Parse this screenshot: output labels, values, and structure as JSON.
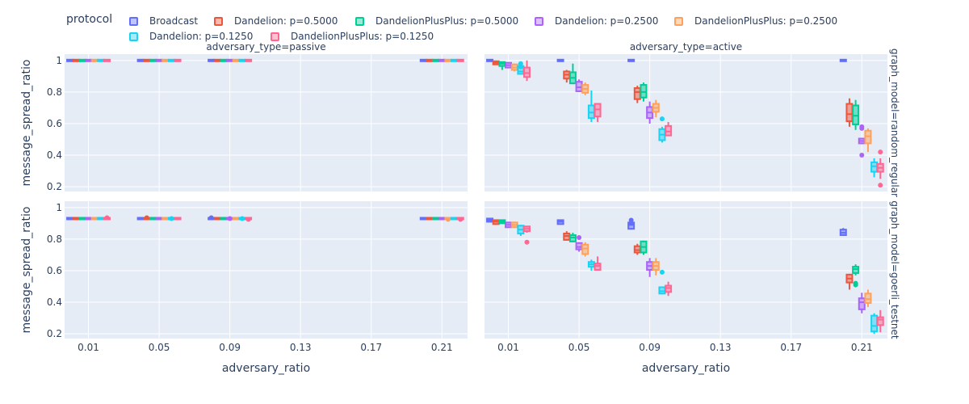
{
  "legend": {
    "title": "protocol",
    "items": [
      {
        "name": "Broadcast",
        "color": "#636efa"
      },
      {
        "name": "Dandelion: p=0.5000",
        "color": "#EF553B"
      },
      {
        "name": "DandelionPlusPlus: p=0.5000",
        "color": "#00cc96"
      },
      {
        "name": "Dandelion: p=0.2500",
        "color": "#ab63fa"
      },
      {
        "name": "DandelionPlusPlus: p=0.2500",
        "color": "#FFA15A"
      },
      {
        "name": "Dandelion: p=0.1250",
        "color": "#19d3f3"
      },
      {
        "name": "DandelionPlusPlus: p=0.1250",
        "color": "#FF6692"
      }
    ]
  },
  "chart_data": {
    "type": "box",
    "xlabel": "adversary_ratio",
    "ylabel": "message_spread_ratio",
    "x_categories": [
      0.01,
      0.05,
      0.09,
      0.21
    ],
    "x_ticks": [
      "0.01",
      "0.05",
      "0.09",
      "0.13",
      "0.17",
      "0.21"
    ],
    "ylim": [
      0.17,
      1.04
    ],
    "y_ticks": [
      "0.2",
      "0.4",
      "0.6",
      "0.8",
      "1"
    ],
    "column_titles": [
      "adversary_type=passive",
      "adversary_type=active"
    ],
    "row_titles": [
      "graph_model=random_regular",
      "graph_model=goerli_testnet"
    ],
    "panels": [
      {
        "row": 0,
        "col": 0,
        "boxes": {
          "0.01": [
            [
              1,
              1,
              1,
              1,
              1
            ],
            [
              1,
              1,
              1,
              1,
              1
            ],
            [
              1,
              1,
              1,
              1,
              1
            ],
            [
              1,
              1,
              1,
              1,
              1
            ],
            [
              1,
              1,
              1,
              1,
              1
            ],
            [
              1,
              1,
              1,
              1,
              1
            ],
            [
              1,
              1,
              1,
              1,
              1
            ]
          ],
          "0.05": [
            [
              1,
              1,
              1,
              1,
              1
            ],
            [
              1,
              1,
              1,
              1,
              1
            ],
            [
              1,
              1,
              1,
              1,
              1
            ],
            [
              1,
              1,
              1,
              1,
              1
            ],
            [
              1,
              1,
              1,
              1,
              1
            ],
            [
              1,
              1,
              1,
              1,
              1
            ],
            [
              1,
              1,
              1,
              1,
              1
            ]
          ],
          "0.09": [
            [
              1,
              1,
              1,
              1,
              1
            ],
            [
              1,
              1,
              1,
              1,
              1
            ],
            [
              1,
              1,
              1,
              1,
              1
            ],
            [
              1,
              1,
              1,
              1,
              1
            ],
            [
              1,
              1,
              1,
              1,
              1
            ],
            [
              1,
              1,
              1,
              1,
              1
            ],
            [
              1,
              1,
              1,
              1,
              1
            ]
          ],
          "0.21": [
            [
              1,
              1,
              1,
              1,
              1
            ],
            [
              1,
              1,
              1,
              1,
              1
            ],
            [
              1,
              1,
              1,
              1,
              1
            ],
            [
              1,
              1,
              1,
              1,
              1
            ],
            [
              1,
              1,
              1,
              1,
              1
            ],
            [
              1,
              1,
              1,
              1,
              1
            ],
            [
              1,
              1,
              1,
              1,
              1
            ]
          ]
        }
      },
      {
        "row": 0,
        "col": 1,
        "boxes": {
          "0.01": [
            [
              1,
              1,
              1,
              1,
              1
            ],
            [
              0.98,
              0.98,
              0.985,
              0.99,
              0.995
            ],
            [
              0.94,
              0.97,
              0.98,
              0.985,
              0.99
            ],
            [
              0.95,
              0.96,
              0.97,
              0.98,
              0.99
            ],
            [
              0.93,
              0.945,
              0.955,
              0.97,
              0.98
            ],
            [
              0.91,
              0.92,
              0.93,
              0.96,
              0.99
            ],
            [
              0.87,
              0.9,
              0.92,
              0.95,
              1
            ]
          ],
          "0.05": [
            [
              1,
              1,
              1,
              1,
              1
            ],
            [
              0.86,
              0.89,
              0.91,
              0.925,
              0.94
            ],
            [
              0.85,
              0.86,
              0.89,
              0.92,
              0.98
            ],
            [
              0.8,
              0.81,
              0.83,
              0.86,
              0.88
            ],
            [
              0.78,
              0.8,
              0.82,
              0.84,
              0.86
            ],
            [
              0.61,
              0.64,
              0.67,
              0.71,
              0.81
            ],
            [
              0.61,
              0.65,
              0.69,
              0.72,
              0.73
            ]
          ],
          "0.09": [
            [
              1,
              1,
              1,
              1,
              1
            ],
            [
              0.73,
              0.76,
              0.8,
              0.82,
              0.84
            ],
            [
              0.74,
              0.77,
              0.8,
              0.84,
              0.86
            ],
            [
              0.6,
              0.64,
              0.67,
              0.7,
              0.74
            ],
            [
              0.64,
              0.68,
              0.7,
              0.72,
              0.75
            ],
            [
              0.48,
              0.5,
              0.53,
              0.56,
              0.58
            ],
            [
              0.53,
              0.53,
              0.55,
              0.58,
              0.61
            ]
          ],
          "0.21": [
            [
              1,
              1,
              1,
              1,
              1
            ],
            [
              0.58,
              0.62,
              0.66,
              0.72,
              0.76
            ],
            [
              0.56,
              0.6,
              0.65,
              0.71,
              0.75
            ],
            [
              0.47,
              0.48,
              0.49,
              0.5,
              0.51
            ],
            [
              0.42,
              0.48,
              0.52,
              0.55,
              0.57
            ],
            [
              0.26,
              0.3,
              0.33,
              0.35,
              0.38
            ],
            [
              0.25,
              0.3,
              0.32,
              0.34,
              0.38
            ]
          ]
        },
        "outliers": [
          [
            0.09,
            5,
            0.63
          ],
          [
            0.21,
            3,
            0.57
          ],
          [
            0.21,
            3,
            0.58
          ],
          [
            0.21,
            3,
            0.4
          ],
          [
            0.21,
            6,
            0.42
          ],
          [
            0.21,
            6,
            0.21
          ],
          [
            0.01,
            5,
            0.98
          ],
          [
            0.01,
            5,
            0.96
          ]
        ]
      },
      {
        "row": 1,
        "col": 0,
        "boxes": {
          "0.01": [
            [
              0.93,
              0.93,
              0.93,
              0.93,
              0.93
            ],
            [
              0.93,
              0.93,
              0.93,
              0.93,
              0.93
            ],
            [
              0.93,
              0.93,
              0.93,
              0.93,
              0.93
            ],
            [
              0.93,
              0.93,
              0.93,
              0.93,
              0.93
            ],
            [
              0.93,
              0.93,
              0.93,
              0.93,
              0.93
            ],
            [
              0.93,
              0.93,
              0.93,
              0.93,
              0.93
            ],
            [
              0.93,
              0.93,
              0.93,
              0.93,
              0.93
            ]
          ],
          "0.05": [
            [
              0.93,
              0.93,
              0.93,
              0.93,
              0.93
            ],
            [
              0.93,
              0.93,
              0.93,
              0.93,
              0.93
            ],
            [
              0.93,
              0.93,
              0.93,
              0.93,
              0.93
            ],
            [
              0.93,
              0.93,
              0.93,
              0.93,
              0.93
            ],
            [
              0.93,
              0.93,
              0.93,
              0.93,
              0.93
            ],
            [
              0.93,
              0.93,
              0.93,
              0.93,
              0.93
            ],
            [
              0.93,
              0.93,
              0.93,
              0.93,
              0.93
            ]
          ],
          "0.09": [
            [
              0.93,
              0.93,
              0.93,
              0.93,
              0.93
            ],
            [
              0.93,
              0.93,
              0.93,
              0.93,
              0.93
            ],
            [
              0.93,
              0.93,
              0.93,
              0.93,
              0.93
            ],
            [
              0.93,
              0.93,
              0.93,
              0.93,
              0.93
            ],
            [
              0.93,
              0.93,
              0.93,
              0.93,
              0.93
            ],
            [
              0.93,
              0.93,
              0.93,
              0.93,
              0.93
            ],
            [
              0.93,
              0.93,
              0.93,
              0.93,
              0.93
            ]
          ],
          "0.21": [
            [
              0.93,
              0.93,
              0.93,
              0.93,
              0.93
            ],
            [
              0.93,
              0.93,
              0.93,
              0.93,
              0.93
            ],
            [
              0.93,
              0.93,
              0.93,
              0.93,
              0.93
            ],
            [
              0.93,
              0.93,
              0.93,
              0.93,
              0.93
            ],
            [
              0.93,
              0.93,
              0.93,
              0.93,
              0.93
            ],
            [
              0.93,
              0.93,
              0.93,
              0.93,
              0.93
            ],
            [
              0.93,
              0.93,
              0.93,
              0.93,
              0.93
            ]
          ]
        },
        "outliers": [
          [
            0.01,
            6,
            0.935
          ],
          [
            0.05,
            1,
            0.935
          ],
          [
            0.05,
            5,
            0.93
          ],
          [
            0.09,
            0,
            0.935
          ],
          [
            0.09,
            3,
            0.93
          ],
          [
            0.09,
            5,
            0.93
          ],
          [
            0.09,
            6,
            0.925
          ],
          [
            0.21,
            4,
            0.925
          ],
          [
            0.21,
            6,
            0.925
          ]
        ]
      },
      {
        "row": 1,
        "col": 1,
        "boxes": {
          "0.01": [
            [
              0.91,
              0.915,
              0.92,
              0.925,
              0.93
            ],
            [
              0.89,
              0.9,
              0.91,
              0.915,
              0.92
            ],
            [
              0.9,
              0.905,
              0.91,
              0.915,
              0.92
            ],
            [
              0.87,
              0.88,
              0.89,
              0.9,
              0.91
            ],
            [
              0.87,
              0.88,
              0.89,
              0.9,
              0.91
            ],
            [
              0.82,
              0.84,
              0.86,
              0.88,
              0.89
            ],
            [
              0.84,
              0.855,
              0.865,
              0.875,
              0.88
            ]
          ],
          "0.05": [
            [
              0.9,
              0.9,
              0.91,
              0.915,
              0.92
            ],
            [
              0.79,
              0.8,
              0.82,
              0.83,
              0.85
            ],
            [
              0.78,
              0.79,
              0.81,
              0.82,
              0.84
            ],
            [
              0.72,
              0.74,
              0.75,
              0.77,
              0.78
            ],
            [
              0.69,
              0.71,
              0.74,
              0.76,
              0.78
            ],
            [
              0.6,
              0.63,
              0.64,
              0.65,
              0.67
            ],
            [
              0.6,
              0.61,
              0.63,
              0.64,
              0.69
            ]
          ],
          "0.09": [
            [
              0.86,
              0.87,
              0.89,
              0.9,
              0.92
            ],
            [
              0.7,
              0.72,
              0.73,
              0.75,
              0.77
            ],
            [
              0.7,
              0.72,
              0.75,
              0.78,
              0.79
            ],
            [
              0.56,
              0.61,
              0.63,
              0.65,
              0.68
            ],
            [
              0.57,
              0.61,
              0.63,
              0.65,
              0.68
            ],
            [
              0.45,
              0.46,
              0.47,
              0.49,
              0.5
            ],
            [
              0.44,
              0.47,
              0.49,
              0.5,
              0.53
            ]
          ],
          "0.21": [
            [
              0.82,
              0.83,
              0.84,
              0.855,
              0.87
            ],
            [
              0.48,
              0.53,
              0.55,
              0.57,
              0.58
            ],
            [
              0.57,
              0.59,
              0.61,
              0.62,
              0.64
            ],
            [
              0.33,
              0.36,
              0.4,
              0.42,
              0.46
            ],
            [
              0.37,
              0.4,
              0.42,
              0.45,
              0.48
            ],
            [
              0.2,
              0.22,
              0.25,
              0.31,
              0.33
            ],
            [
              0.21,
              0.26,
              0.29,
              0.3,
              0.35
            ]
          ]
        },
        "outliers": [
          [
            0.01,
            6,
            0.78
          ],
          [
            0.05,
            3,
            0.81
          ],
          [
            0.09,
            0,
            0.92
          ],
          [
            0.09,
            0,
            0.9
          ],
          [
            0.09,
            5,
            0.59
          ],
          [
            0.21,
            2,
            0.51
          ],
          [
            0.21,
            2,
            0.52
          ]
        ]
      }
    ]
  }
}
